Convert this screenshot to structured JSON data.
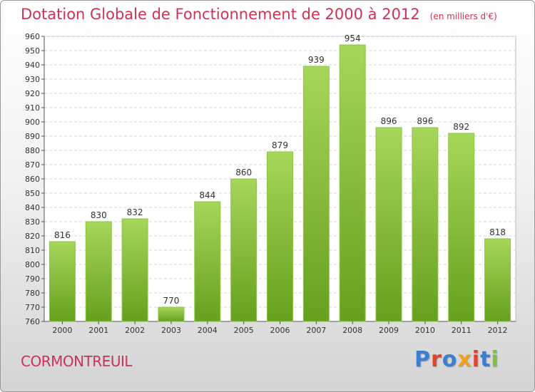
{
  "header": {
    "title": "Dotation Globale de Fonctionnement de 2000 à 2012",
    "subtitle": "(en milliers d'€)"
  },
  "footer": {
    "commune": "CORMONTREUIL",
    "logo": "Proxiti"
  },
  "colors": {
    "title": "#cc3355",
    "bar_light": "#a6d65a",
    "bar_dark": "#66a01e",
    "logo_letters": [
      "#3a7fd0",
      "#e0452e",
      "#3a7fd0",
      "#f0a020",
      "#e0452e",
      "#3a7fd0",
      "#7cc23c"
    ]
  },
  "chart_data": {
    "type": "bar",
    "categories": [
      "2000",
      "2001",
      "2002",
      "2003",
      "2004",
      "2005",
      "2006",
      "2007",
      "2008",
      "2009",
      "2010",
      "2011",
      "2012"
    ],
    "values": [
      816,
      830,
      832,
      770,
      844,
      860,
      879,
      939,
      954,
      896,
      896,
      892,
      818
    ],
    "ylim": [
      760,
      960
    ],
    "ytick_step": 10,
    "grid": true,
    "legend": "none"
  }
}
